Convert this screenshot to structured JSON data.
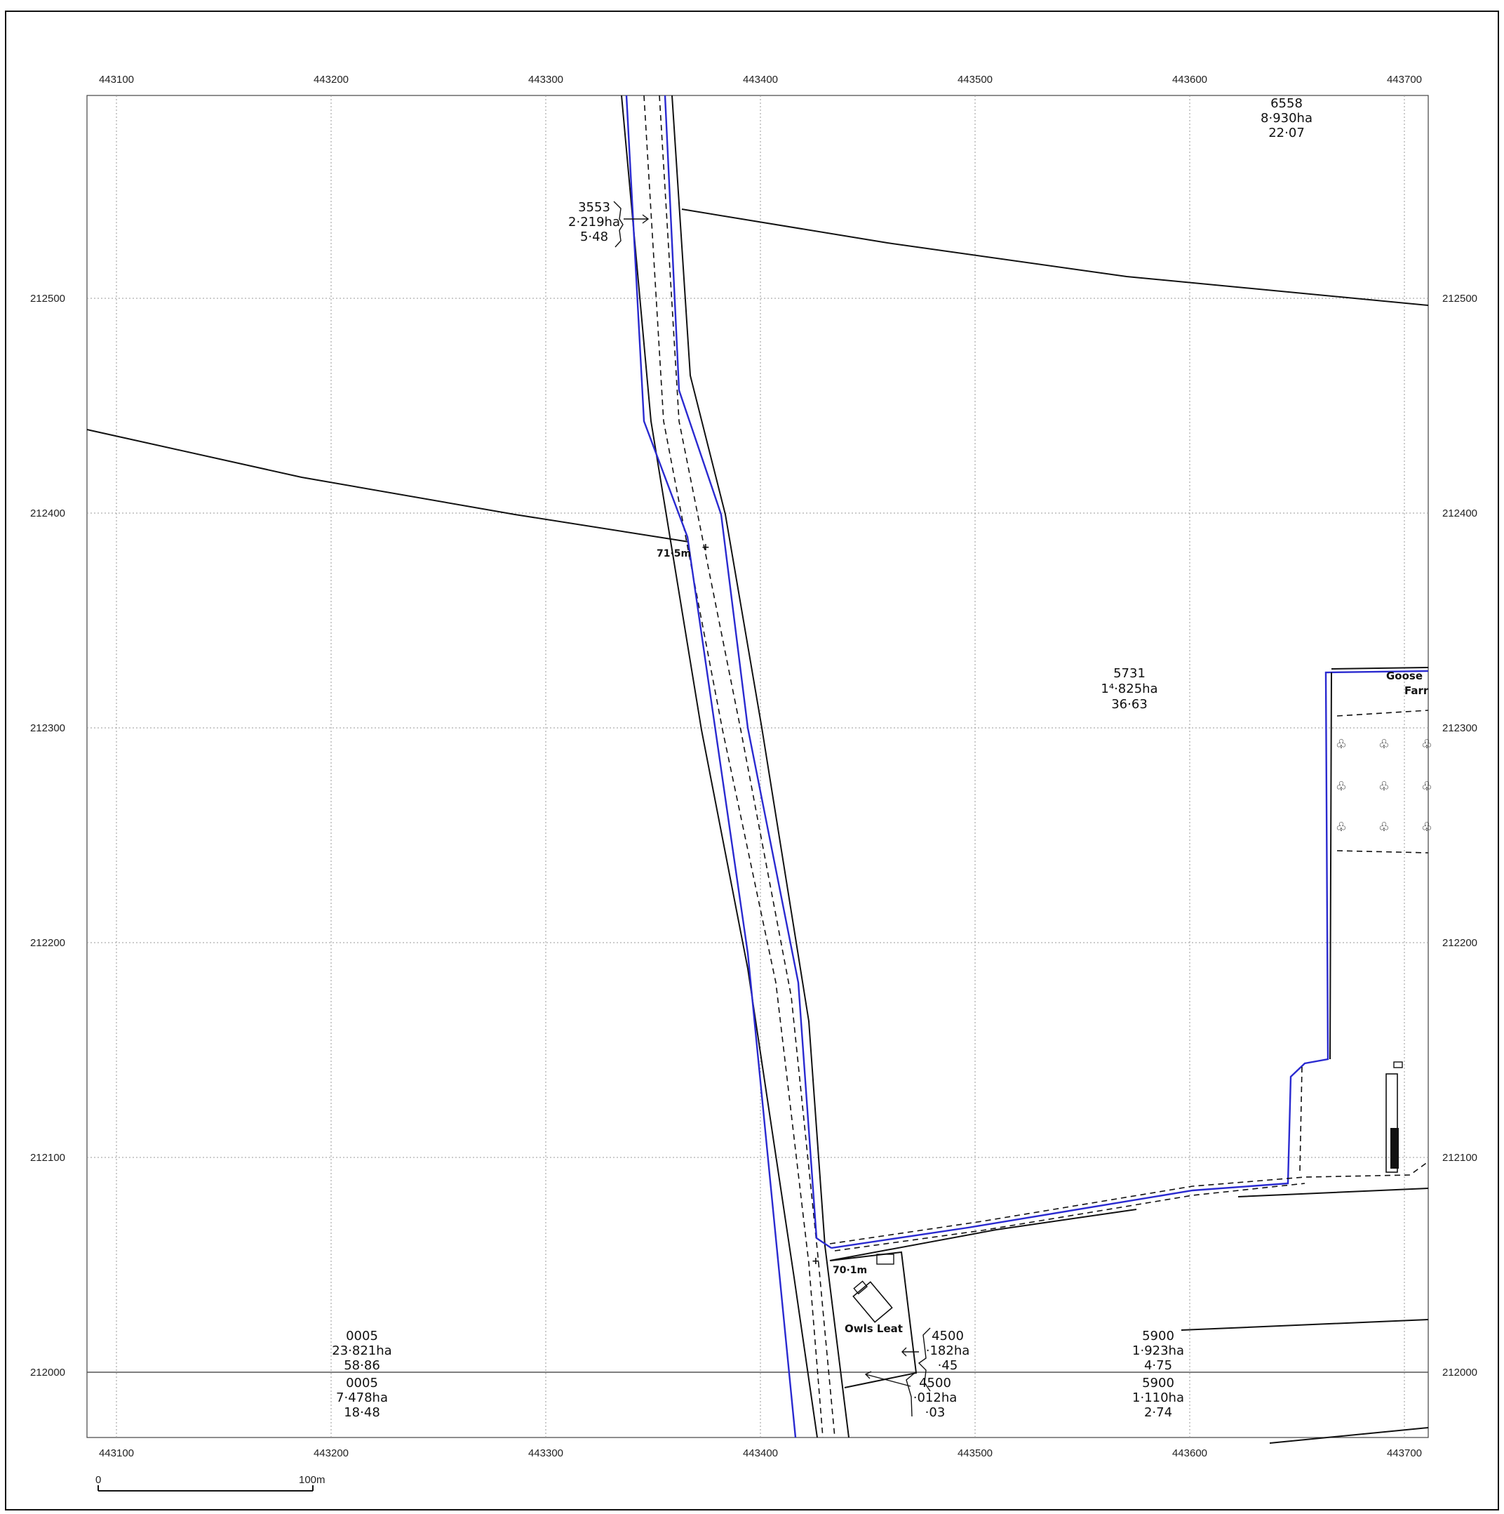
{
  "colors": {
    "boundary": "#2a2ad0",
    "linework": "#111111",
    "grid": "#9a9a9a",
    "background": "#ffffff"
  },
  "grid": {
    "eastings": [
      "443100",
      "443200",
      "443300",
      "443400",
      "443500",
      "443600",
      "443700"
    ],
    "northings": [
      "212500",
      "212400",
      "212300",
      "212200",
      "212100",
      "212000"
    ]
  },
  "parcels": [
    {
      "id": "6558",
      "area": "8·930ha",
      "acres": "22·07"
    },
    {
      "id": "3553",
      "area": "2·219ha",
      "acres": "5·48"
    },
    {
      "id": "5731",
      "area": "1⁴·825ha",
      "acres": "36·63"
    },
    {
      "id": "0005",
      "area": "23·821ha",
      "acres": "58·86"
    },
    {
      "id": "0005",
      "area": "7·478ha",
      "acres": "18·48"
    },
    {
      "id": "4500",
      "area": "·182ha",
      "acres": "·45"
    },
    {
      "id": "4500",
      "area": "·012ha",
      "acres": "·03"
    },
    {
      "id": "5900",
      "area": "1·923ha",
      "acres": "4·75"
    },
    {
      "id": "5900",
      "area": "1·110ha",
      "acres": "2·74"
    }
  ],
  "places": {
    "goose": "Goose",
    "farm": "Farr",
    "owls": "Owls Leat"
  },
  "spot_heights": [
    "71·5m",
    "70·1m"
  ],
  "scale_bar": {
    "start": "0",
    "end": "100m"
  },
  "icons": [
    "tree-icon",
    "house-icon"
  ]
}
